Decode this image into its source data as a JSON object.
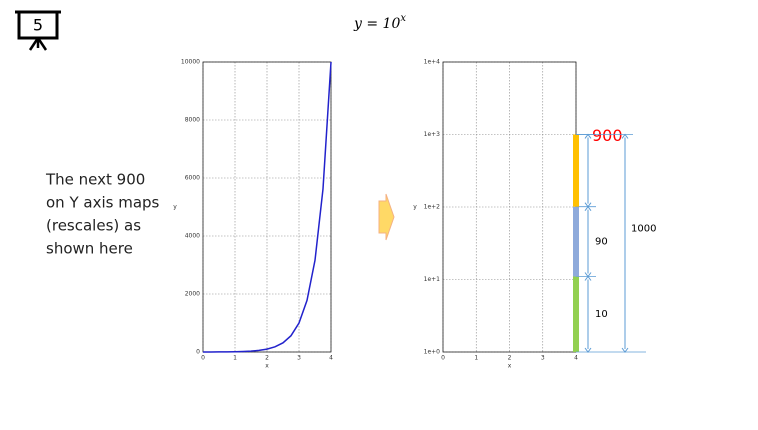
{
  "slide_number": "5",
  "title": {
    "base": "y = 10",
    "exponent": "x"
  },
  "note": [
    "The next 900",
    "on Y axis maps",
    "(rescales) as",
    "shown here"
  ],
  "chart_data": [
    {
      "type": "line",
      "x": [
        0,
        0.25,
        0.5,
        0.75,
        1,
        1.25,
        1.5,
        1.75,
        2,
        2.25,
        2.5,
        2.75,
        3,
        3.25,
        3.5,
        3.75,
        4
      ],
      "values": [
        1,
        1.78,
        3.16,
        5.62,
        10,
        17.8,
        31.6,
        56.2,
        100,
        178,
        316,
        562,
        1000,
        1778,
        3162,
        5623,
        10000
      ],
      "color": "#2222cc",
      "xlim": [
        0,
        4
      ],
      "xticks": [
        0,
        1,
        2,
        3,
        4
      ],
      "ylim": [
        0,
        10000
      ],
      "yticks": [
        0,
        2000,
        4000,
        6000,
        8000,
        10000
      ],
      "x_label": "x",
      "y_label": "y",
      "grid": true
    },
    {
      "type": "bar",
      "log_y": true,
      "x": [
        4
      ],
      "series": [
        {
          "color": "#92d050",
          "values": [
            10
          ],
          "label_color": "#000000"
        },
        {
          "color": "#8eaadb",
          "values": [
            90
          ],
          "label_color": "#000000"
        },
        {
          "color": "#ffc000",
          "values": [
            900
          ],
          "label_color": "#ff0000"
        }
      ],
      "total": 1000,
      "arrow_color": "#5b9bd5",
      "xlim": [
        0,
        4
      ],
      "xticks": [
        0,
        1,
        2,
        3,
        4
      ],
      "ylim": [
        1,
        10000
      ],
      "yticks": [
        {
          "value": 1,
          "label": "1e+0"
        },
        {
          "value": 10,
          "label": "1e+1"
        },
        {
          "value": 100,
          "label": "1e+2"
        },
        {
          "value": 1000,
          "label": "1e+3"
        },
        {
          "value": 10000,
          "label": "1e+4"
        }
      ],
      "x_label": "x",
      "y_label": "y",
      "grid": true
    }
  ]
}
